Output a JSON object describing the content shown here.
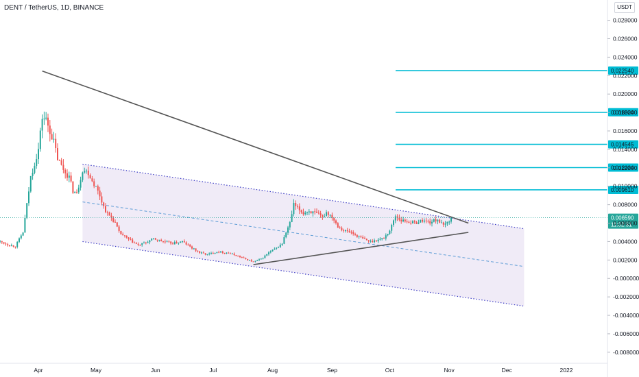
{
  "header": {
    "title": "DENT / TetherUS, 1D, BINANCE",
    "currency": "USDT"
  },
  "chart_data": {
    "type": "candlestick",
    "y_axis": {
      "range": [
        -0.0092,
        0.0302
      ],
      "ticks": [
        "0.028000",
        "0.026000",
        "0.024000",
        "0.022000",
        "0.020000",
        "0.018000",
        "0.016000",
        "0.014000",
        "0.012000",
        "0.010000",
        "0.008000",
        "0.006000",
        "0.004000",
        "0.002000",
        "-0.000000",
        "-0.002000",
        "-0.004000",
        "-0.006000",
        "-0.008000"
      ]
    },
    "x_axis": {
      "ticks": [
        {
          "label": "Apr",
          "day": 0
        },
        {
          "label": "May",
          "day": 30
        },
        {
          "label": "Jun",
          "day": 61
        },
        {
          "label": "Jul",
          "day": 91
        },
        {
          "label": "Aug",
          "day": 122
        },
        {
          "label": "Sep",
          "day": 153
        },
        {
          "label": "Oct",
          "day": 183
        },
        {
          "label": "Nov",
          "day": 214
        },
        {
          "label": "Dec",
          "day": 244
        },
        {
          "label": "2022",
          "day": 275
        }
      ]
    },
    "current_price": {
      "value": 0.00659,
      "label": "0.006590",
      "countdown": "11:02:31",
      "color": "#26a69a"
    },
    "fib_levels": [
      {
        "label": "0.022540",
        "value": 0.02254
      },
      {
        "label": "0.018024",
        "value": 0.018024
      },
      {
        "label": "0.014545",
        "value": 0.014545
      },
      {
        "label": "0.012024",
        "value": 0.012024
      },
      {
        "label": "0.009610",
        "value": 0.00961
      }
    ],
    "channel": {
      "upper": [
        [
          23,
          0.0124
        ],
        [
          253,
          0.0054
        ]
      ],
      "mid": [
        [
          23,
          0.0083
        ],
        [
          253,
          0.0013
        ]
      ],
      "lower": [
        [
          23,
          0.004
        ],
        [
          253,
          -0.003
        ]
      ]
    },
    "trendlines": [
      [
        [
          2,
          0.0225
        ],
        [
          224,
          0.006
        ]
      ],
      [
        [
          112,
          0.0015
        ],
        [
          224,
          0.005
        ]
      ]
    ],
    "colors": {
      "up": "#26a69a",
      "down": "#ef5350",
      "fib": "#00bcd4",
      "channel_fill": "#ede7f6",
      "channel_line": "#3d3dc4",
      "trendline": "#555555"
    },
    "anchors": [
      [
        -20,
        0.004
      ],
      [
        -15,
        0.0036
      ],
      [
        -12,
        0.0035
      ],
      [
        -8,
        0.005
      ],
      [
        -6,
        0.008
      ],
      [
        -4,
        0.011
      ],
      [
        -2,
        0.0125
      ],
      [
        0,
        0.014
      ],
      [
        2,
        0.0175
      ],
      [
        4,
        0.0172
      ],
      [
        6,
        0.016
      ],
      [
        8,
        0.0148
      ],
      [
        10,
        0.013
      ],
      [
        12,
        0.0122
      ],
      [
        14,
        0.0115
      ],
      [
        16,
        0.011
      ],
      [
        18,
        0.0095
      ],
      [
        20,
        0.0092
      ],
      [
        23,
        0.0118
      ],
      [
        26,
        0.0115
      ],
      [
        28,
        0.0106
      ],
      [
        30,
        0.0099
      ],
      [
        32,
        0.009
      ],
      [
        34,
        0.0078
      ],
      [
        36,
        0.007
      ],
      [
        38,
        0.0066
      ],
      [
        40,
        0.006
      ],
      [
        42,
        0.005
      ],
      [
        45,
        0.0045
      ],
      [
        48,
        0.0041
      ],
      [
        52,
        0.0036
      ],
      [
        56,
        0.0039
      ],
      [
        60,
        0.0043
      ],
      [
        65,
        0.004
      ],
      [
        70,
        0.0038
      ],
      [
        75,
        0.004
      ],
      [
        80,
        0.0033
      ],
      [
        84,
        0.0028
      ],
      [
        88,
        0.0026
      ],
      [
        93,
        0.0029
      ],
      [
        98,
        0.0028
      ],
      [
        103,
        0.0025
      ],
      [
        108,
        0.0021
      ],
      [
        112,
        0.0018
      ],
      [
        116,
        0.0021
      ],
      [
        120,
        0.0028
      ],
      [
        124,
        0.0033
      ],
      [
        127,
        0.0038
      ],
      [
        129,
        0.005
      ],
      [
        131,
        0.006
      ],
      [
        133,
        0.008
      ],
      [
        135,
        0.0076
      ],
      [
        138,
        0.0071
      ],
      [
        141,
        0.0073
      ],
      [
        145,
        0.007
      ],
      [
        148,
        0.0066
      ],
      [
        150,
        0.0072
      ],
      [
        153,
        0.0067
      ],
      [
        156,
        0.0057
      ],
      [
        159,
        0.0052
      ],
      [
        163,
        0.005
      ],
      [
        166,
        0.0046
      ],
      [
        169,
        0.0043
      ],
      [
        173,
        0.004
      ],
      [
        177,
        0.0042
      ],
      [
        180,
        0.0044
      ],
      [
        183,
        0.0052
      ],
      [
        186,
        0.0068
      ],
      [
        189,
        0.0063
      ],
      [
        192,
        0.0062
      ],
      [
        196,
        0.006
      ],
      [
        200,
        0.0063
      ],
      [
        204,
        0.0061
      ],
      [
        208,
        0.0064
      ],
      [
        211,
        0.0057
      ],
      [
        214,
        0.0063
      ],
      [
        215,
        0.0066
      ]
    ]
  }
}
